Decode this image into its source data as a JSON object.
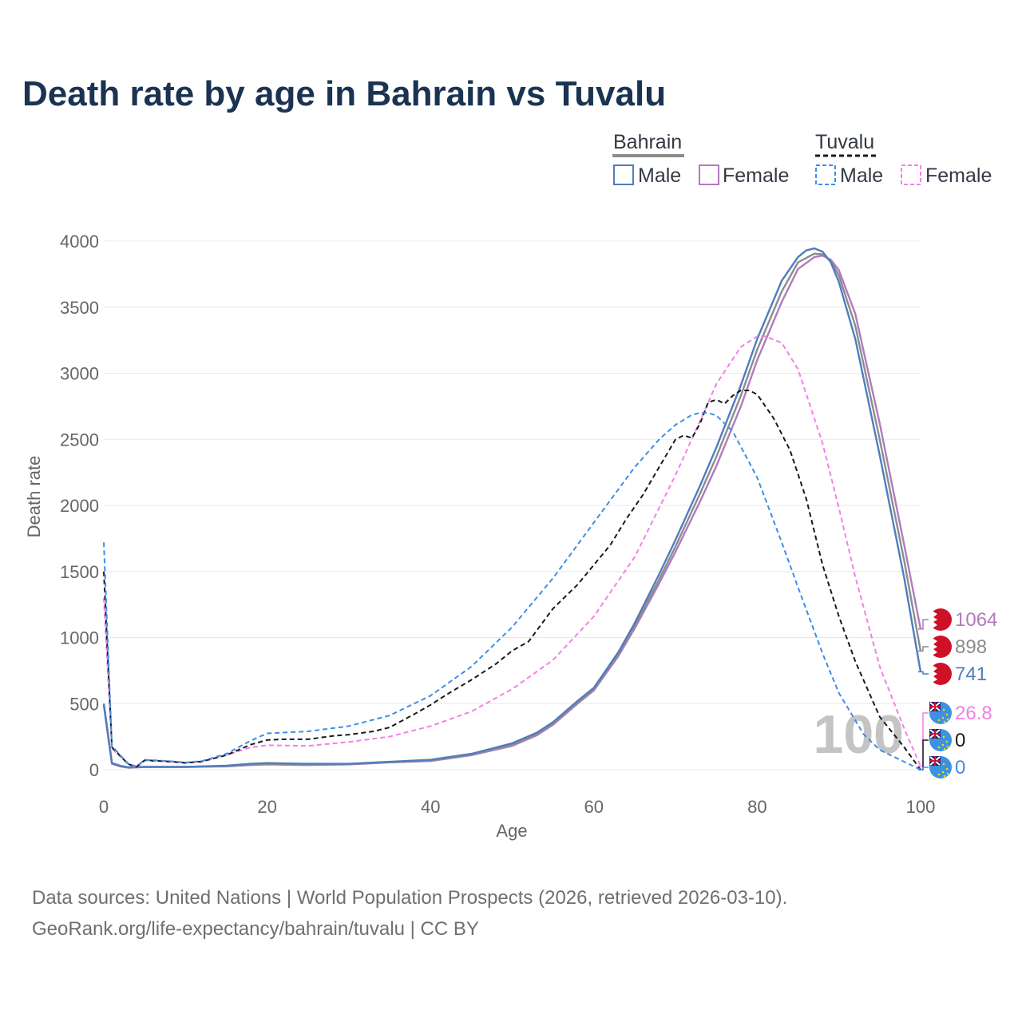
{
  "title": "Death rate by age in Bahrain vs Tuvalu",
  "legend": {
    "groups": [
      {
        "label": "Bahrain",
        "underline_color": "#8c8c8c",
        "underline_style": "solid",
        "items": [
          {
            "label": "Male",
            "color": "#4f7dbd",
            "dash": "solid"
          },
          {
            "label": "Female",
            "color": "#b07bbd",
            "dash": "solid"
          }
        ]
      },
      {
        "label": "Tuvalu",
        "underline_color": "#1a1a1a",
        "underline_style": "dashed",
        "items": [
          {
            "label": "Male",
            "color": "#3f8de6",
            "dash": "dashed"
          },
          {
            "label": "Female",
            "color": "#f47fe5",
            "dash": "dashed"
          }
        ]
      }
    ]
  },
  "watermark": "100",
  "source": {
    "line1": "Data sources: United Nations | World Population Prospects (2026, retrieved 2026-03-10).",
    "line2": "GeoRank.org/life-expectancy/bahrain/tuvalu | CC BY"
  },
  "chart_data": {
    "type": "line",
    "title": "Death rate by age in Bahrain vs Tuvalu",
    "xlabel": "Age",
    "ylabel": "Death rate",
    "xlim": [
      0,
      100
    ],
    "ylim": [
      0,
      4000
    ],
    "xticks": [
      0,
      20,
      40,
      60,
      80,
      100
    ],
    "yticks": [
      0,
      500,
      1000,
      1500,
      2000,
      2500,
      3000,
      3500,
      4000
    ],
    "grid": true,
    "legend_position": "top-right",
    "series": [
      {
        "name": "Bahrain Female",
        "country": "Bahrain",
        "sex": "Female",
        "color": "#b07bbd",
        "dash": "solid",
        "end_label": "1064",
        "x": [
          0,
          1,
          2,
          3,
          5,
          10,
          15,
          18,
          20,
          25,
          30,
          35,
          40,
          45,
          50,
          53,
          55,
          58,
          60,
          63,
          65,
          68,
          70,
          73,
          75,
          78,
          80,
          83,
          85,
          87,
          88,
          89,
          90,
          92,
          95,
          98,
          100
        ],
        "y": [
          490,
          45,
          25,
          15,
          20,
          20,
          25,
          35,
          40,
          35,
          40,
          55,
          65,
          110,
          180,
          260,
          340,
          500,
          600,
          860,
          1070,
          1410,
          1650,
          2030,
          2300,
          2750,
          3100,
          3540,
          3790,
          3880,
          3890,
          3860,
          3780,
          3450,
          2620,
          1700,
          1064
        ]
      },
      {
        "name": "Bahrain Both",
        "country": "Bahrain",
        "sex": "Both",
        "color": "#8c8c8c",
        "dash": "solid",
        "end_label": "898",
        "x": [
          0,
          1,
          2,
          3,
          5,
          10,
          15,
          18,
          20,
          25,
          30,
          35,
          40,
          45,
          50,
          53,
          55,
          58,
          60,
          63,
          65,
          68,
          70,
          73,
          75,
          78,
          80,
          83,
          85,
          87,
          88,
          89,
          90,
          92,
          95,
          98,
          100
        ],
        "y": [
          495,
          48,
          27,
          16,
          21,
          21,
          28,
          40,
          45,
          40,
          43,
          57,
          70,
          115,
          190,
          270,
          350,
          510,
          610,
          875,
          1090,
          1440,
          1690,
          2090,
          2370,
          2830,
          3180,
          3620,
          3840,
          3905,
          3900,
          3850,
          3740,
          3360,
          2500,
          1580,
          898
        ]
      },
      {
        "name": "Bahrain Male",
        "country": "Bahrain",
        "sex": "Male",
        "color": "#4f7dbd",
        "dash": "solid",
        "end_label": "741",
        "x": [
          0,
          1,
          2,
          3,
          5,
          10,
          15,
          18,
          20,
          25,
          30,
          35,
          40,
          45,
          50,
          53,
          55,
          58,
          60,
          63,
          65,
          68,
          70,
          73,
          75,
          78,
          80,
          83,
          85,
          86,
          87,
          88,
          89,
          90,
          92,
          95,
          98,
          100
        ],
        "y": [
          500,
          50,
          30,
          18,
          22,
          22,
          30,
          45,
          50,
          45,
          45,
          60,
          75,
          120,
          200,
          280,
          360,
          520,
          620,
          890,
          1110,
          1480,
          1740,
          2150,
          2440,
          2910,
          3260,
          3700,
          3880,
          3930,
          3945,
          3920,
          3840,
          3690,
          3260,
          2380,
          1450,
          741
        ]
      },
      {
        "name": "Tuvalu Female",
        "country": "Tuvalu",
        "sex": "Female",
        "color": "#f47fe5",
        "dash": "dashed",
        "end_label": "26.8",
        "x": [
          0,
          1,
          2,
          3,
          4,
          5,
          8,
          10,
          12,
          15,
          18,
          20,
          25,
          30,
          35,
          40,
          45,
          50,
          55,
          60,
          65,
          70,
          73,
          75,
          78,
          80,
          81,
          83,
          85,
          88,
          90,
          92,
          95,
          98,
          100
        ],
        "y": [
          1300,
          160,
          100,
          40,
          20,
          70,
          60,
          50,
          60,
          110,
          170,
          185,
          180,
          210,
          250,
          330,
          440,
          610,
          830,
          1160,
          1610,
          2230,
          2640,
          2920,
          3200,
          3280,
          3280,
          3230,
          3030,
          2470,
          1980,
          1460,
          780,
          310,
          26.8
        ]
      },
      {
        "name": "Tuvalu Both",
        "country": "Tuvalu",
        "sex": "Both",
        "color": "#1a1a1a",
        "dash": "dashed",
        "end_label": "0",
        "x": [
          0,
          1,
          2,
          3,
          4,
          5,
          8,
          10,
          12,
          15,
          18,
          20,
          22,
          25,
          28,
          30,
          33,
          35,
          38,
          40,
          42,
          45,
          48,
          50,
          52,
          55,
          58,
          60,
          62,
          64,
          66,
          68,
          70,
          71,
          72,
          73,
          74,
          75,
          76,
          77,
          78,
          79,
          80,
          82,
          84,
          86,
          88,
          90,
          92,
          95,
          98,
          100
        ],
        "y": [
          1500,
          170,
          105,
          42,
          22,
          72,
          62,
          52,
          62,
          110,
          190,
          225,
          230,
          230,
          255,
          265,
          290,
          320,
          420,
          490,
          570,
          680,
          800,
          900,
          970,
          1220,
          1400,
          1550,
          1700,
          1900,
          2080,
          2290,
          2500,
          2530,
          2510,
          2620,
          2780,
          2800,
          2770,
          2830,
          2870,
          2870,
          2840,
          2660,
          2420,
          2050,
          1550,
          1160,
          820,
          400,
          170,
          0
        ]
      },
      {
        "name": "Tuvalu Male",
        "country": "Tuvalu",
        "sex": "Male",
        "color": "#3f8de6",
        "dash": "dashed",
        "end_label": "0",
        "x": [
          0,
          1,
          2,
          3,
          4,
          5,
          8,
          10,
          12,
          15,
          18,
          20,
          25,
          30,
          35,
          40,
          45,
          50,
          55,
          60,
          65,
          68,
          70,
          72,
          73,
          74,
          75,
          77,
          80,
          83,
          85,
          88,
          90,
          93,
          95,
          98,
          100
        ],
        "y": [
          1720,
          180,
          110,
          45,
          25,
          75,
          65,
          55,
          65,
          120,
          220,
          275,
          290,
          330,
          410,
          560,
          780,
          1080,
          1450,
          1870,
          2290,
          2500,
          2610,
          2685,
          2700,
          2700,
          2680,
          2560,
          2210,
          1720,
          1380,
          880,
          580,
          270,
          150,
          60,
          0
        ]
      }
    ]
  }
}
